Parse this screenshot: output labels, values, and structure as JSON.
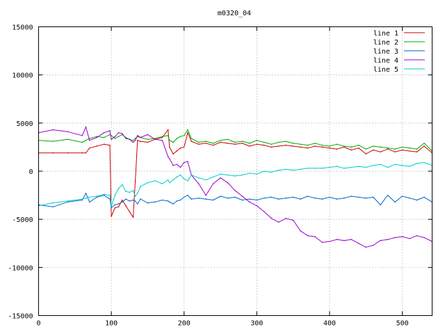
{
  "chart_data": {
    "type": "line",
    "title": "m0320_04",
    "xlabel": "",
    "ylabel": "",
    "xlim": [
      0,
      541
    ],
    "ylim": [
      -15000,
      15000
    ],
    "x_ticks": [
      0,
      100,
      200,
      300,
      400,
      500
    ],
    "y_ticks": [
      -15000,
      -10000,
      -5000,
      0,
      5000,
      10000,
      15000
    ],
    "grid": true,
    "legend_position": "top-right",
    "x": [
      0,
      20,
      40,
      60,
      65,
      70,
      80,
      90,
      98,
      100,
      105,
      110,
      115,
      120,
      125,
      130,
      133,
      136,
      140,
      150,
      160,
      170,
      178,
      180,
      185,
      190,
      195,
      200,
      205,
      210,
      220,
      230,
      240,
      250,
      260,
      270,
      280,
      290,
      300,
      310,
      320,
      330,
      340,
      350,
      360,
      370,
      380,
      390,
      400,
      410,
      420,
      430,
      440,
      450,
      460,
      470,
      480,
      490,
      500,
      510,
      520,
      530,
      541
    ],
    "series": [
      {
        "name": "line 1",
        "color": "#cc0000",
        "values": [
          1900,
          1900,
          1900,
          1900,
          1900,
          2400,
          2600,
          2800,
          2700,
          -4700,
          -3800,
          -3700,
          -3000,
          -3600,
          -4200,
          -4800,
          -1000,
          3200,
          3100,
          3000,
          3300,
          3500,
          4300,
          2500,
          1800,
          2100,
          2400,
          2500,
          4000,
          3100,
          2800,
          2900,
          2700,
          3000,
          2900,
          2800,
          2900,
          2600,
          2800,
          2700,
          2500,
          2600,
          2700,
          2600,
          2500,
          2400,
          2600,
          2500,
          2400,
          2300,
          2500,
          2200,
          2400,
          1800,
          2200,
          2000,
          2300,
          2000,
          2200,
          2100,
          2000,
          2600,
          1900
        ]
      },
      {
        "name": "line 2",
        "color": "#00aa00",
        "values": [
          3200,
          3100,
          3300,
          3000,
          3200,
          3400,
          3600,
          3500,
          3800,
          3700,
          3400,
          3600,
          3800,
          3500,
          3300,
          3200,
          3400,
          3600,
          3500,
          3300,
          3400,
          3600,
          3700,
          3200,
          3000,
          3400,
          3600,
          3700,
          4300,
          3400,
          3000,
          3100,
          2900,
          3200,
          3300,
          3000,
          3100,
          2900,
          3200,
          3000,
          2800,
          3000,
          3100,
          2900,
          2800,
          2700,
          2900,
          2700,
          2600,
          2800,
          2600,
          2500,
          2700,
          2300,
          2600,
          2500,
          2400,
          2300,
          2500,
          2400,
          2300,
          2900,
          2100
        ]
      },
      {
        "name": "line 3",
        "color": "#0066cc",
        "values": [
          -3500,
          -3700,
          -3200,
          -3000,
          -2300,
          -3200,
          -2700,
          -2500,
          -2900,
          -3800,
          -3500,
          -3400,
          -3200,
          -2900,
          -3100,
          -3000,
          -3100,
          -3400,
          -2900,
          -3300,
          -3200,
          -3000,
          -3100,
          -3200,
          -3400,
          -3100,
          -3000,
          -2700,
          -2500,
          -2900,
          -2800,
          -2900,
          -3000,
          -2600,
          -2800,
          -2700,
          -3000,
          -2900,
          -3000,
          -2800,
          -2700,
          -2900,
          -2800,
          -2700,
          -2900,
          -2600,
          -2800,
          -2900,
          -2700,
          -2900,
          -2800,
          -2600,
          -2700,
          -2800,
          -2700,
          -3500,
          -2500,
          -3200,
          -2600,
          -2800,
          -3000,
          -2700,
          -3200
        ]
      },
      {
        "name": "line 4",
        "color": "#9900cc",
        "values": [
          4000,
          4300,
          4100,
          3700,
          4600,
          3200,
          3500,
          4000,
          4200,
          3300,
          3600,
          4000,
          3900,
          3400,
          3300,
          3000,
          3200,
          3700,
          3500,
          3800,
          3300,
          3200,
          1500,
          1300,
          600,
          700,
          400,
          900,
          1000,
          -400,
          -1300,
          -2500,
          -1300,
          -700,
          -1200,
          -2000,
          -2600,
          -3200,
          -3600,
          -4200,
          -4900,
          -5300,
          -4900,
          -5100,
          -6200,
          -6700,
          -6800,
          -7400,
          -7300,
          -7100,
          -7200,
          -7100,
          -7500,
          -7900,
          -7700,
          -7200,
          -7100,
          -6900,
          -6800,
          -7000,
          -6700,
          -6900,
          -7300
        ]
      },
      {
        "name": "line 5",
        "color": "#00cccc",
        "values": [
          -3600,
          -3300,
          -3100,
          -2900,
          -2800,
          -2700,
          -2600,
          -2400,
          -2500,
          -3700,
          -2500,
          -1800,
          -1400,
          -2100,
          -2200,
          -2000,
          -2600,
          -2300,
          -1600,
          -1200,
          -1000,
          -1300,
          -900,
          -1200,
          -900,
          -600,
          -400,
          -800,
          -1000,
          -400,
          -700,
          -900,
          -600,
          -300,
          -400,
          -500,
          -400,
          -200,
          -300,
          0,
          -100,
          100,
          200,
          100,
          200,
          300,
          300,
          300,
          400,
          500,
          300,
          400,
          500,
          400,
          600,
          700,
          400,
          700,
          600,
          500,
          800,
          900,
          600
        ]
      }
    ]
  }
}
